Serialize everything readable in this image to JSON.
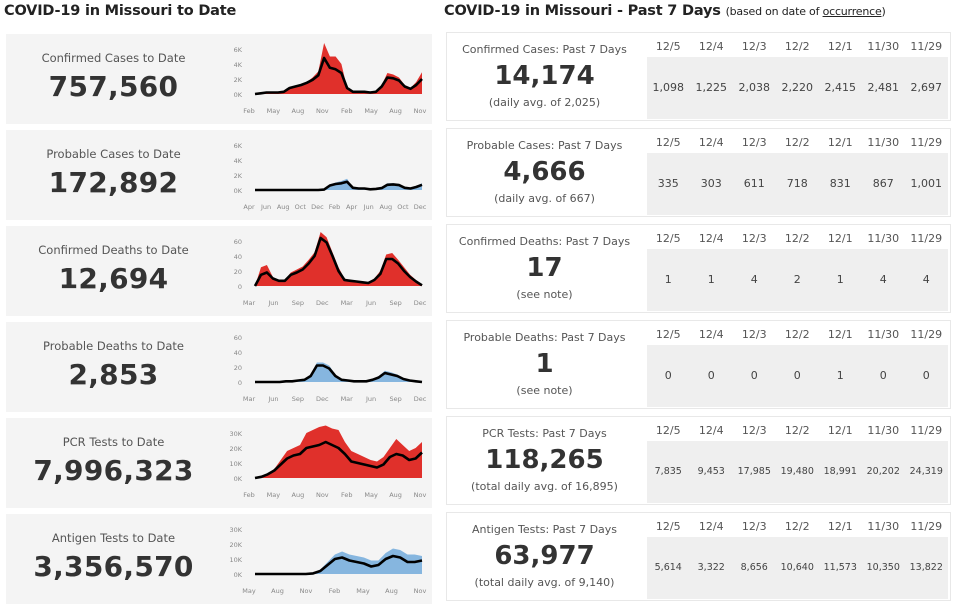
{
  "left_header": "COVID-19 in Missouri to Date",
  "right_header": {
    "main": "COVID-19 in Missouri - Past 7 Days",
    "note_prefix": "(based on date of ",
    "note_link": "occurrence",
    "note_suffix": ")"
  },
  "colors": {
    "red": "#e0302b",
    "blue": "#86b6df",
    "line": "#000000",
    "card_bg": "#f4f4f4"
  },
  "to_date": [
    {
      "title": "Confirmed Cases to Date",
      "value": "757,560"
    },
    {
      "title": "Probable Cases to Date",
      "value": "172,892"
    },
    {
      "title": "Confirmed Deaths to Date",
      "value": "12,694"
    },
    {
      "title": "Probable Deaths to Date",
      "value": "2,853"
    },
    {
      "title": "PCR Tests to Date",
      "value": "7,996,323"
    },
    {
      "title": "Antigen Tests to Date",
      "value": "3,356,570"
    }
  ],
  "past_7": [
    {
      "title": "Confirmed Cases: Past 7 Days",
      "value": "14,174",
      "sub": "(daily avg. of 2,025)",
      "dates": [
        "12/5",
        "12/4",
        "12/3",
        "12/2",
        "12/1",
        "11/30",
        "11/29"
      ],
      "values": [
        "1,098",
        "1,225",
        "2,038",
        "2,220",
        "2,415",
        "2,481",
        "2,697"
      ]
    },
    {
      "title": "Probable Cases: Past 7 Days",
      "value": "4,666",
      "sub": "(daily avg. of 667)",
      "dates": [
        "12/5",
        "12/4",
        "12/3",
        "12/2",
        "12/1",
        "11/30",
        "11/29"
      ],
      "values": [
        "335",
        "303",
        "611",
        "718",
        "831",
        "867",
        "1,001"
      ]
    },
    {
      "title": "Confirmed Deaths: Past 7 Days",
      "value": "17",
      "sub": "(see note)",
      "dates": [
        "12/5",
        "12/4",
        "12/3",
        "12/2",
        "12/1",
        "11/30",
        "11/29"
      ],
      "values": [
        "1",
        "1",
        "4",
        "2",
        "1",
        "4",
        "4"
      ]
    },
    {
      "title": "Probable Deaths: Past 7 Days",
      "value": "1",
      "sub": "(see note)",
      "dates": [
        "12/5",
        "12/4",
        "12/3",
        "12/2",
        "12/1",
        "11/30",
        "11/29"
      ],
      "values": [
        "0",
        "0",
        "0",
        "0",
        "1",
        "0",
        "0"
      ]
    },
    {
      "title": "PCR Tests: Past 7 Days",
      "value": "118,265",
      "sub": "(total daily avg. of 16,895)",
      "dates": [
        "12/5",
        "12/4",
        "12/3",
        "12/2",
        "12/1",
        "11/30",
        "11/29"
      ],
      "values": [
        "7,835",
        "9,453",
        "17,985",
        "19,480",
        "18,991",
        "20,202",
        "24,319"
      ]
    },
    {
      "title": "Antigen Tests: Past 7 Days",
      "value": "63,977",
      "sub": "(total daily avg. of 9,140)",
      "dates": [
        "12/5",
        "12/4",
        "12/3",
        "12/2",
        "12/1",
        "11/30",
        "11/29"
      ],
      "values": [
        "5,614",
        "3,322",
        "8,656",
        "10,640",
        "11,573",
        "10,350",
        "13,822"
      ]
    }
  ],
  "chart_data": [
    {
      "type": "area",
      "title": "Confirmed Cases to Date",
      "color": "red",
      "yticks": [
        "6K",
        "4K",
        "2K",
        "0K"
      ],
      "ylim": [
        0,
        7000
      ],
      "xticks": [
        "Feb",
        "May",
        "Aug",
        "Nov",
        "Feb",
        "May",
        "Aug",
        "Nov"
      ],
      "daily": [
        0,
        100,
        200,
        200,
        200,
        300,
        900,
        1100,
        1300,
        1600,
        2200,
        3000,
        6800,
        5000,
        5000,
        4000,
        800,
        300,
        300,
        300,
        200,
        300,
        1200,
        2800,
        2600,
        2200,
        1200,
        800,
        1600,
        2900
      ],
      "avg": [
        0,
        100,
        200,
        200,
        200,
        300,
        800,
        1000,
        1200,
        1500,
        1900,
        2500,
        4800,
        3500,
        3300,
        2800,
        800,
        300,
        300,
        300,
        200,
        300,
        1000,
        2200,
        2100,
        1800,
        1000,
        700,
        1200,
        2000
      ]
    },
    {
      "type": "area",
      "title": "Probable Cases to Date",
      "color": "blue",
      "yticks": [
        "6K",
        "4K",
        "2K",
        "0K"
      ],
      "ylim": [
        0,
        7000
      ],
      "xticks": [
        "Apr",
        "Jun",
        "Aug",
        "Oct",
        "Dec",
        "Feb",
        "Apr",
        "Jun",
        "Aug",
        "Oct",
        "Dec"
      ],
      "daily": [
        0,
        0,
        0,
        0,
        0,
        0,
        0,
        0,
        0,
        0,
        0,
        0,
        50,
        700,
        1000,
        1200,
        1500,
        300,
        200,
        200,
        100,
        200,
        300,
        900,
        900,
        800,
        300,
        200,
        500,
        900
      ],
      "avg": [
        0,
        0,
        0,
        0,
        0,
        0,
        0,
        0,
        0,
        0,
        0,
        0,
        50,
        600,
        800,
        900,
        1100,
        300,
        200,
        200,
        100,
        150,
        250,
        700,
        750,
        650,
        300,
        200,
        400,
        700
      ]
    },
    {
      "type": "area",
      "title": "Confirmed Deaths to Date",
      "color": "red",
      "yticks": [
        "60",
        "40",
        "20",
        "0"
      ],
      "ylim": [
        0,
        72
      ],
      "xticks": [
        "Mar",
        "Jun",
        "Sep",
        "Dec",
        "Mar",
        "Jun",
        "Sep",
        "Dec"
      ],
      "daily": [
        0,
        25,
        28,
        12,
        8,
        8,
        18,
        22,
        26,
        35,
        45,
        72,
        65,
        45,
        25,
        10,
        8,
        7,
        6,
        5,
        10,
        20,
        42,
        44,
        35,
        25,
        15,
        8,
        2
      ],
      "avg": [
        0,
        15,
        18,
        10,
        7,
        7,
        15,
        18,
        22,
        30,
        40,
        64,
        58,
        40,
        20,
        8,
        7,
        6,
        5,
        4,
        8,
        16,
        36,
        36,
        30,
        20,
        12,
        6,
        1
      ]
    },
    {
      "type": "area",
      "title": "Probable Deaths to Date",
      "color": "blue",
      "yticks": [
        "60",
        "40",
        "20",
        "0"
      ],
      "ylim": [
        0,
        72
      ],
      "xticks": [
        "Mar",
        "Jun",
        "Sep",
        "Dec",
        "Mar",
        "Jun",
        "Sep",
        "Dec"
      ],
      "daily": [
        0,
        0,
        0,
        0,
        0,
        1,
        1,
        2,
        3,
        10,
        26,
        26,
        22,
        10,
        3,
        2,
        1,
        1,
        1,
        3,
        8,
        15,
        13,
        10,
        5,
        3,
        2,
        1
      ],
      "avg": [
        0,
        0,
        0,
        0,
        0,
        1,
        1,
        2,
        3,
        8,
        22,
        22,
        18,
        8,
        3,
        2,
        1,
        1,
        1,
        3,
        6,
        12,
        10,
        8,
        4,
        2,
        1,
        0
      ]
    },
    {
      "type": "area",
      "title": "PCR Tests to Date",
      "color": "red",
      "yticks": [
        "30K",
        "20K",
        "10K",
        "0K"
      ],
      "ylim": [
        0,
        36000
      ],
      "xticks": [
        "Feb",
        "May",
        "Aug",
        "Nov",
        "Feb",
        "May",
        "Aug",
        "Nov"
      ],
      "daily": [
        0,
        1000,
        3000,
        6000,
        12000,
        18000,
        20000,
        22000,
        30000,
        32000,
        34000,
        35000,
        33000,
        32000,
        24000,
        18000,
        16000,
        14000,
        12000,
        11000,
        14000,
        20000,
        26000,
        22000,
        18000,
        20000,
        24000
      ],
      "avg": [
        0,
        800,
        2500,
        5000,
        9000,
        13000,
        15000,
        16000,
        20000,
        21000,
        22000,
        24000,
        22000,
        20000,
        16000,
        11000,
        10000,
        9000,
        8000,
        7000,
        9000,
        14000,
        16000,
        15000,
        12000,
        13000,
        17000
      ]
    },
    {
      "type": "area",
      "title": "Antigen Tests to Date",
      "color": "blue",
      "yticks": [
        "30K",
        "20K",
        "10K",
        "0K"
      ],
      "ylim": [
        0,
        36000
      ],
      "xticks": [
        "May",
        "Aug",
        "Nov",
        "Feb",
        "May",
        "Aug",
        "Nov"
      ],
      "daily": [
        0,
        0,
        0,
        0,
        0,
        0,
        0,
        0,
        500,
        3000,
        8000,
        13000,
        15000,
        13000,
        12000,
        11000,
        9000,
        9000,
        14000,
        17000,
        16000,
        13000,
        13000,
        12000
      ],
      "avg": [
        0,
        0,
        0,
        0,
        0,
        0,
        0,
        0,
        400,
        2000,
        6000,
        10000,
        11000,
        9000,
        8000,
        7000,
        5000,
        6000,
        10000,
        12000,
        11000,
        8000,
        8000,
        9000
      ]
    }
  ]
}
